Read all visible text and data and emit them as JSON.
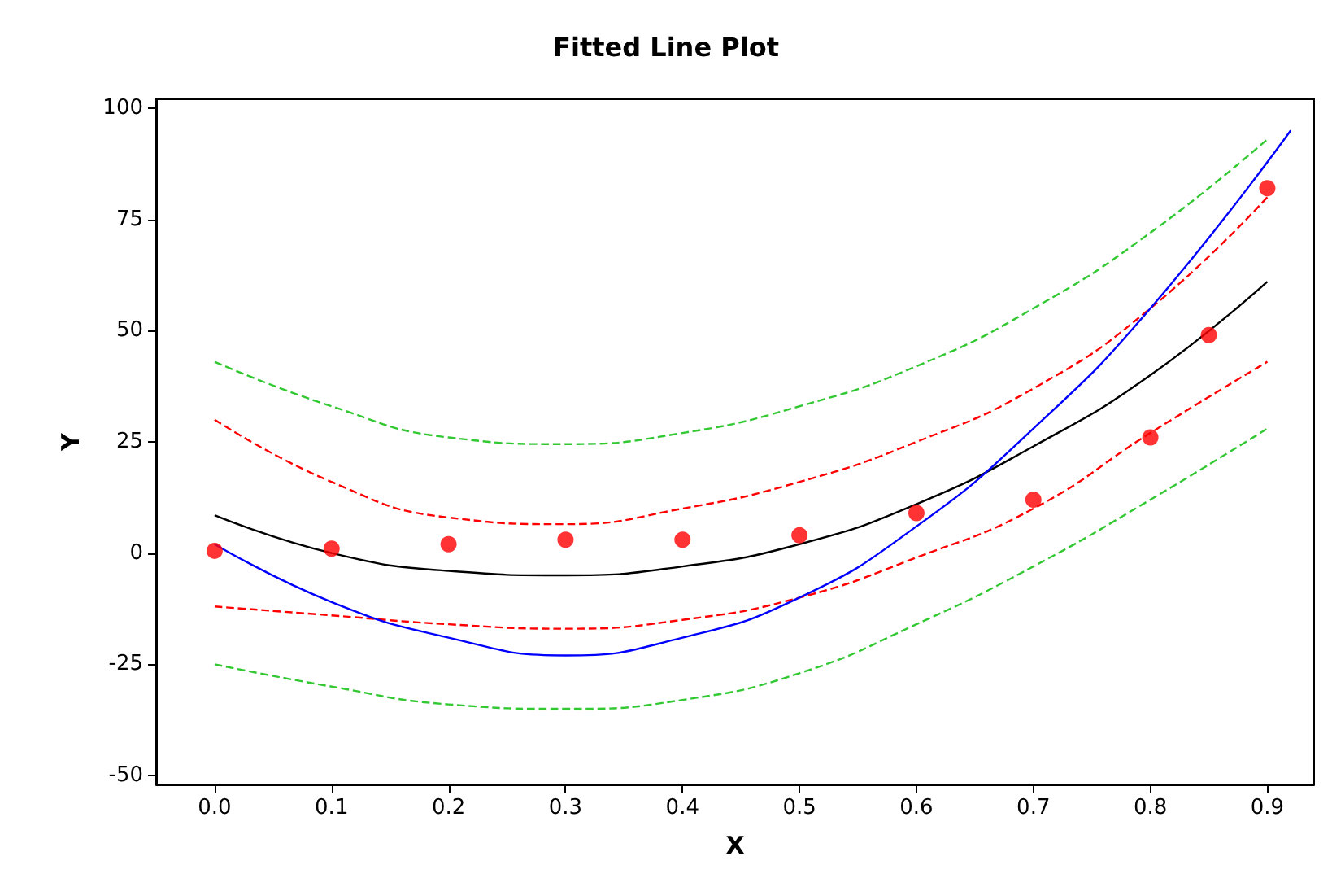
{
  "chart_data": {
    "type": "scatter",
    "title": "Fitted Line Plot",
    "xlabel": "X",
    "ylabel": "Y",
    "xlim": [
      -0.05,
      0.94
    ],
    "ylim": [
      -52,
      102
    ],
    "xticks": [
      {
        "value": 0,
        "label": "0.0"
      },
      {
        "value": 0.1,
        "label": "0.1"
      },
      {
        "value": 0.2,
        "label": "0.2"
      },
      {
        "value": 0.3,
        "label": "0.3"
      },
      {
        "value": 0.4,
        "label": "0.4"
      },
      {
        "value": 0.5,
        "label": "0.5"
      },
      {
        "value": 0.6,
        "label": "0.6"
      },
      {
        "value": 0.7,
        "label": "0.7"
      },
      {
        "value": 0.8,
        "label": "0.8"
      },
      {
        "value": 0.9,
        "label": "0.9"
      }
    ],
    "yticks": [
      -50,
      -25,
      0,
      25,
      50,
      75,
      100
    ],
    "grid": false,
    "series": [
      {
        "type": "line",
        "color": "#32c832",
        "marker": "none",
        "line_style": "dashed",
        "x": [
          0,
          0.1,
          0.2,
          0.3,
          0.4,
          0.5,
          0.6,
          0.7,
          0.8,
          0.9
        ],
        "values": [
          43,
          33,
          26,
          24.5,
          27,
          33,
          42,
          55,
          72,
          93
        ]
      },
      {
        "type": "line",
        "color": "#32c832",
        "marker": "none",
        "line_style": "dashed",
        "x": [
          0,
          0.1,
          0.2,
          0.3,
          0.4,
          0.5,
          0.6,
          0.7,
          0.8,
          0.9
        ],
        "values": [
          -25,
          -30,
          -34,
          -35,
          -33,
          -27,
          -16,
          -3,
          12,
          28
        ]
      },
      {
        "type": "line",
        "color": "#ff0000",
        "marker": "none",
        "line_style": "dashed",
        "x": [
          0,
          0.1,
          0.2,
          0.3,
          0.4,
          0.5,
          0.6,
          0.7,
          0.8,
          0.9
        ],
        "values": [
          30,
          16,
          8,
          6.5,
          10,
          16,
          25,
          37,
          55,
          80
        ]
      },
      {
        "type": "line",
        "color": "#ff0000",
        "marker": "none",
        "line_style": "dashed",
        "x": [
          0,
          0.1,
          0.2,
          0.3,
          0.4,
          0.5,
          0.6,
          0.7,
          0.8,
          0.9
        ],
        "values": [
          -12,
          -14,
          -16,
          -17,
          -15,
          -10,
          -1,
          10,
          27,
          43
        ]
      },
      {
        "type": "line",
        "color": "#000000",
        "marker": "none",
        "line_style": "solid",
        "x": [
          0,
          0.1,
          0.2,
          0.3,
          0.4,
          0.5,
          0.6,
          0.7,
          0.8,
          0.9
        ],
        "values": [
          8.5,
          0,
          -4,
          -5,
          -3,
          2,
          11,
          24,
          40,
          61
        ]
      },
      {
        "type": "line",
        "color": "#0000ff",
        "marker": "none",
        "line_style": "solid",
        "x": [
          0,
          0.1,
          0.2,
          0.3,
          0.4,
          0.5,
          0.6,
          0.7,
          0.8,
          0.92
        ],
        "values": [
          2,
          -11,
          -19,
          -23,
          -19,
          -10,
          6,
          28,
          55,
          95
        ]
      },
      {
        "color": "#ff0000",
        "marker": "circle",
        "x": [
          0,
          0.1,
          0.2,
          0.3,
          0.4,
          0.5,
          0.6,
          0.7,
          0.8,
          0.85,
          0.9
        ],
        "values": [
          0.5,
          1,
          2,
          3,
          3,
          4,
          9,
          12,
          26,
          49,
          82
        ]
      }
    ]
  }
}
